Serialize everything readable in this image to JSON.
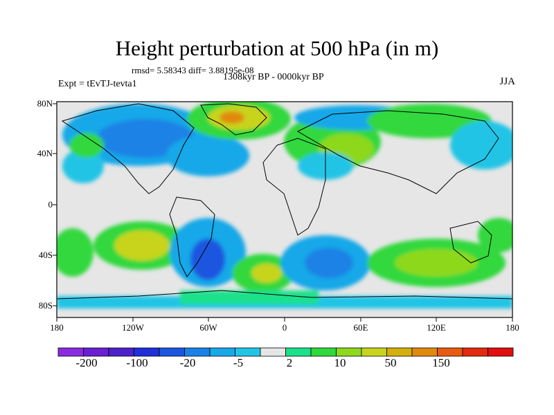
{
  "title": "Height perturbation at 500 hPa (in m)",
  "stats": "rmsd= 5.58343 diff= 3.88195e-08",
  "period": "1308kyr BP - 0000kyr BP",
  "experiment": "Expt = tEvTJ-tevta1",
  "season": "JJA",
  "lat_labels": [
    "80N",
    "40N",
    "0",
    "40S",
    "80S"
  ],
  "lon_labels": [
    "180",
    "120W",
    "60W",
    "0",
    "60E",
    "120E",
    "180"
  ],
  "colorbar": {
    "colors": [
      "#8a2be2",
      "#6a1fd0",
      "#4b22c7",
      "#2030d8",
      "#1a56e0",
      "#1a82e6",
      "#19a8e8",
      "#22c4e6",
      "#e6e6e6",
      "#1ee08c",
      "#30d83c",
      "#8ed81e",
      "#c8d41e",
      "#d4b00e",
      "#e08a0e",
      "#e85a10",
      "#e22a10",
      "#e01010"
    ],
    "labels": [
      "-200",
      "-100",
      "-20",
      "-5",
      "2",
      "10",
      "50",
      "150"
    ]
  }
}
